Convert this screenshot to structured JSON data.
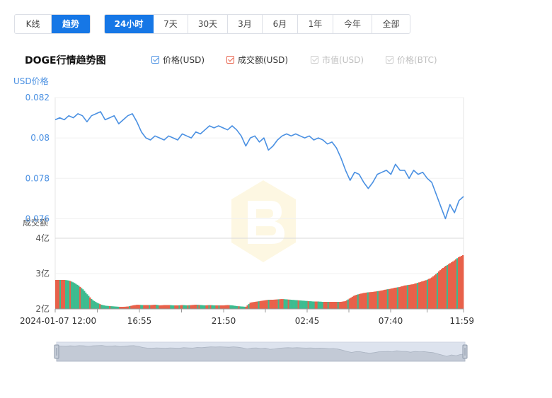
{
  "view_tabs": [
    "K线",
    "趋势"
  ],
  "active_view": 1,
  "range_tabs": [
    "24小时",
    "7天",
    "30天",
    "3月",
    "6月",
    "1年",
    "今年",
    "全部"
  ],
  "active_range": 0,
  "chart_title": "DOGE行情趋势图",
  "legend": [
    {
      "label": "价格(USD)",
      "checked": true,
      "color": "#4a90e2"
    },
    {
      "label": "成交额(USD)",
      "checked": true,
      "color": "#e8614a"
    },
    {
      "label": "市值(USD)",
      "checked": false,
      "color": "#cccccc"
    },
    {
      "label": "价格(BTC)",
      "checked": false,
      "color": "#cccccc"
    }
  ],
  "chart_data": {
    "type": "line",
    "price_axis_label": "USD价格",
    "volume_axis_label": "成交额",
    "price_ylim": [
      0.075,
      0.082
    ],
    "price_ticks": [
      "0.082",
      "0.08",
      "0.078",
      "0.076"
    ],
    "volume_ylim": [
      2,
      4
    ],
    "volume_ticks": [
      "4亿",
      "3亿",
      "2亿"
    ],
    "x_ticks": [
      "2024-01-07 12:00",
      "16:55",
      "21:50",
      "02:45",
      "07:40",
      "11:59"
    ],
    "price_series": {
      "name": "价格(USD)",
      "values": [
        0.0809,
        0.081,
        0.0809,
        0.0811,
        0.081,
        0.0812,
        0.0811,
        0.0808,
        0.0811,
        0.0812,
        0.0813,
        0.0809,
        0.081,
        0.0811,
        0.0807,
        0.0809,
        0.0811,
        0.0812,
        0.0808,
        0.0803,
        0.08,
        0.0799,
        0.0801,
        0.08,
        0.0799,
        0.0801,
        0.08,
        0.0799,
        0.0802,
        0.0801,
        0.08,
        0.0803,
        0.0802,
        0.0804,
        0.0806,
        0.0805,
        0.0806,
        0.0805,
        0.0804,
        0.0806,
        0.0804,
        0.0801,
        0.0796,
        0.08,
        0.0801,
        0.0798,
        0.08,
        0.0794,
        0.0796,
        0.0799,
        0.0801,
        0.0802,
        0.0801,
        0.0802,
        0.0801,
        0.08,
        0.0801,
        0.0799,
        0.08,
        0.0799,
        0.0797,
        0.0798,
        0.0795,
        0.079,
        0.0784,
        0.0779,
        0.0783,
        0.0782,
        0.0778,
        0.0775,
        0.0778,
        0.0782,
        0.0783,
        0.0784,
        0.0782,
        0.0787,
        0.0784,
        0.0784,
        0.078,
        0.0784,
        0.0782,
        0.0783,
        0.078,
        0.0778,
        0.0772,
        0.0766,
        0.076,
        0.0767,
        0.0763,
        0.0769,
        0.0771
      ],
      "color": "#4a90e2"
    },
    "volume_series": {
      "name": "成交额(USD)",
      "values": [
        2.82,
        2.82,
        2.82,
        2.8,
        2.74,
        2.66,
        2.55,
        2.4,
        2.26,
        2.18,
        2.12,
        2.09,
        2.08,
        2.07,
        2.06,
        2.06,
        2.07,
        2.1,
        2.12,
        2.11,
        2.11,
        2.11,
        2.12,
        2.1,
        2.11,
        2.11,
        2.1,
        2.1,
        2.11,
        2.1,
        2.11,
        2.12,
        2.11,
        2.1,
        2.11,
        2.1,
        2.1,
        2.1,
        2.11,
        2.1,
        2.08,
        2.07,
        2.06,
        2.18,
        2.2,
        2.22,
        2.24,
        2.26,
        2.26,
        2.27,
        2.28,
        2.27,
        2.26,
        2.25,
        2.24,
        2.23,
        2.22,
        2.21,
        2.21,
        2.2,
        2.2,
        2.2,
        2.2,
        2.2,
        2.22,
        2.3,
        2.38,
        2.42,
        2.45,
        2.47,
        2.48,
        2.5,
        2.52,
        2.55,
        2.57,
        2.6,
        2.62,
        2.66,
        2.68,
        2.7,
        2.74,
        2.78,
        2.82,
        2.88,
        2.98,
        3.1,
        3.2,
        3.28,
        3.36,
        3.46,
        3.52
      ],
      "up_color": "#e8614a",
      "down_color": "#3dbb8f"
    }
  }
}
